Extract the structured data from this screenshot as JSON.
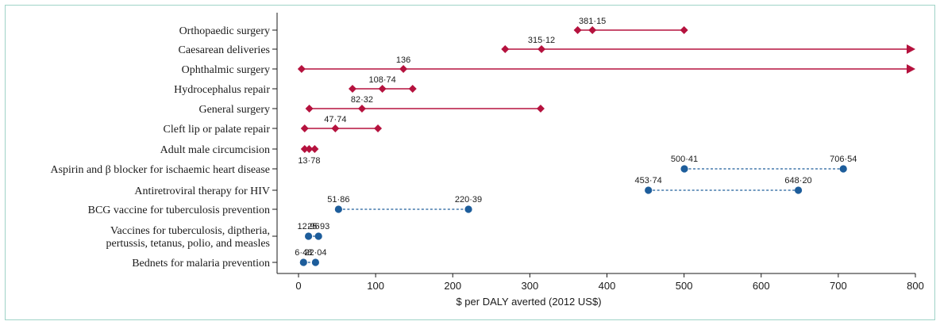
{
  "chart_data": {
    "type": "scatter",
    "title": "",
    "xlabel": "$ per DALY averted (2012 US$)",
    "ylabel": "",
    "xlim": [
      0,
      800
    ],
    "xticks": [
      0,
      100,
      200,
      300,
      400,
      500,
      600,
      700,
      800
    ],
    "grid": false,
    "legend": "none",
    "colors": {
      "surgical": "#b5123e",
      "comparison": "#1d5d9b"
    },
    "rows": [
      {
        "label": [
          "Orthopaedic surgery"
        ],
        "group": "surgical",
        "low": 362,
        "median": 381.15,
        "median_label": "381·15",
        "high": 500,
        "high_arrow": false,
        "label_pos": "above"
      },
      {
        "label": [
          "Caesarean deliveries"
        ],
        "group": "surgical",
        "low": 268,
        "median": 315.12,
        "median_label": "315·12",
        "high": 800,
        "high_arrow": true,
        "label_pos": "above"
      },
      {
        "label": [
          "Ophthalmic surgery"
        ],
        "group": "surgical",
        "low": 4,
        "median": 136,
        "median_label": "136",
        "high": 800,
        "high_arrow": true,
        "label_pos": "above"
      },
      {
        "label": [
          "Hydrocephalus repair"
        ],
        "group": "surgical",
        "low": 70,
        "median": 108.74,
        "median_label": "108·74",
        "high": 148,
        "high_arrow": false,
        "label_pos": "above"
      },
      {
        "label": [
          "General surgery"
        ],
        "group": "surgical",
        "low": 14,
        "median": 82.32,
        "median_label": "82·32",
        "high": 314,
        "high_arrow": false,
        "label_pos": "above"
      },
      {
        "label": [
          "Cleft lip or palate repair"
        ],
        "group": "surgical",
        "low": 8,
        "median": 47.74,
        "median_label": "47·74",
        "high": 103,
        "high_arrow": false,
        "label_pos": "above"
      },
      {
        "label": [
          "Adult male circumcision"
        ],
        "group": "surgical",
        "low": 8,
        "median": 13.78,
        "median_label": "13·78",
        "high": 21,
        "high_arrow": false,
        "label_pos": "below"
      },
      {
        "label": [
          "Aspirin and β blocker for ischaemic heart disease"
        ],
        "group": "comparison",
        "low": 500.41,
        "low_label": "500·41",
        "high": 706.54,
        "high_label": "706·54"
      },
      {
        "label": [
          "Antiretroviral therapy for HIV"
        ],
        "group": "comparison",
        "low": 453.74,
        "low_label": "453·74",
        "high": 648.2,
        "high_label": "648·20"
      },
      {
        "label": [
          "BCG vaccine for tuberculosis prevention"
        ],
        "group": "comparison",
        "low": 51.86,
        "low_label": "51·86",
        "high": 220.39,
        "high_label": "220·39"
      },
      {
        "label": [
          "Vaccines for tuberculosis, diptheria,",
          "pertussis, tetanus, polio, and measles"
        ],
        "group": "comparison",
        "low": 12.96,
        "low_label": "12·96",
        "high": 25.93,
        "high_label": "25·93"
      },
      {
        "label": [
          "Bednets for malaria prevention"
        ],
        "group": "comparison",
        "low": 6.48,
        "low_label": "6·48",
        "high": 22.04,
        "high_label": "22·04"
      }
    ]
  }
}
